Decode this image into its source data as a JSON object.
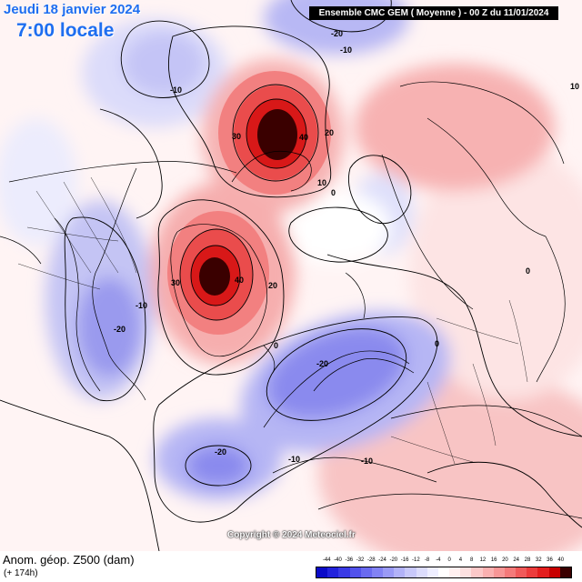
{
  "header": {
    "date": "Jeudi 18 janvier 2024",
    "time": "7:00 locale",
    "model": "Ensemble CMC GEM  ( Moyenne )  -  00 Z du 11/01/2024"
  },
  "map": {
    "contour_labels": [
      {
        "text": "-20"
      },
      {
        "text": "-10"
      },
      {
        "text": "-10"
      },
      {
        "text": "30"
      },
      {
        "text": "40"
      },
      {
        "text": "20"
      },
      {
        "text": "10"
      },
      {
        "text": "0"
      },
      {
        "text": "-10"
      },
      {
        "text": "30"
      },
      {
        "text": "40"
      },
      {
        "text": "20"
      },
      {
        "text": "-20"
      },
      {
        "text": "0"
      },
      {
        "text": "-20"
      },
      {
        "text": "-20"
      },
      {
        "text": "-10"
      },
      {
        "text": "-10"
      },
      {
        "text": "0"
      },
      {
        "text": "0"
      },
      {
        "text": "10"
      }
    ],
    "anomaly_centers": [
      {
        "name": "greenland-high",
        "value": 44
      },
      {
        "name": "arctic-high",
        "value": 44
      },
      {
        "name": "scandinavia-low",
        "value": -24
      },
      {
        "name": "atlantic-low",
        "value": -24
      },
      {
        "name": "north-america-low",
        "value": -20
      },
      {
        "name": "north-pacific-low",
        "value": -20
      }
    ]
  },
  "copyright": "Copyright © 2024 Meteociel.fr",
  "footer": {
    "parameter": "Anom. géop. Z500 (dam)",
    "lead": "(+ 174h)"
  },
  "legend": {
    "ticks": [
      "-44",
      "-40",
      "-36",
      "-32",
      "-28",
      "-24",
      "-20",
      "-16",
      "-12",
      "-8",
      "-4",
      "0",
      "4",
      "8",
      "12",
      "16",
      "20",
      "24",
      "28",
      "32",
      "36",
      "40"
    ],
    "colors": [
      "#0a0ac8",
      "#2222dc",
      "#3a3ae6",
      "#5252ec",
      "#6a6af0",
      "#8282f4",
      "#9a9af6",
      "#b2b2f8",
      "#c8c8fa",
      "#dcdcfc",
      "#eeeeff",
      "#ffffff",
      "#fff0f0",
      "#fde0e0",
      "#fcc8c8",
      "#fab0b0",
      "#f79696",
      "#f47a7a",
      "#f05a5a",
      "#ec3c3c",
      "#e41e1e",
      "#c80000",
      "#3a0000"
    ]
  }
}
